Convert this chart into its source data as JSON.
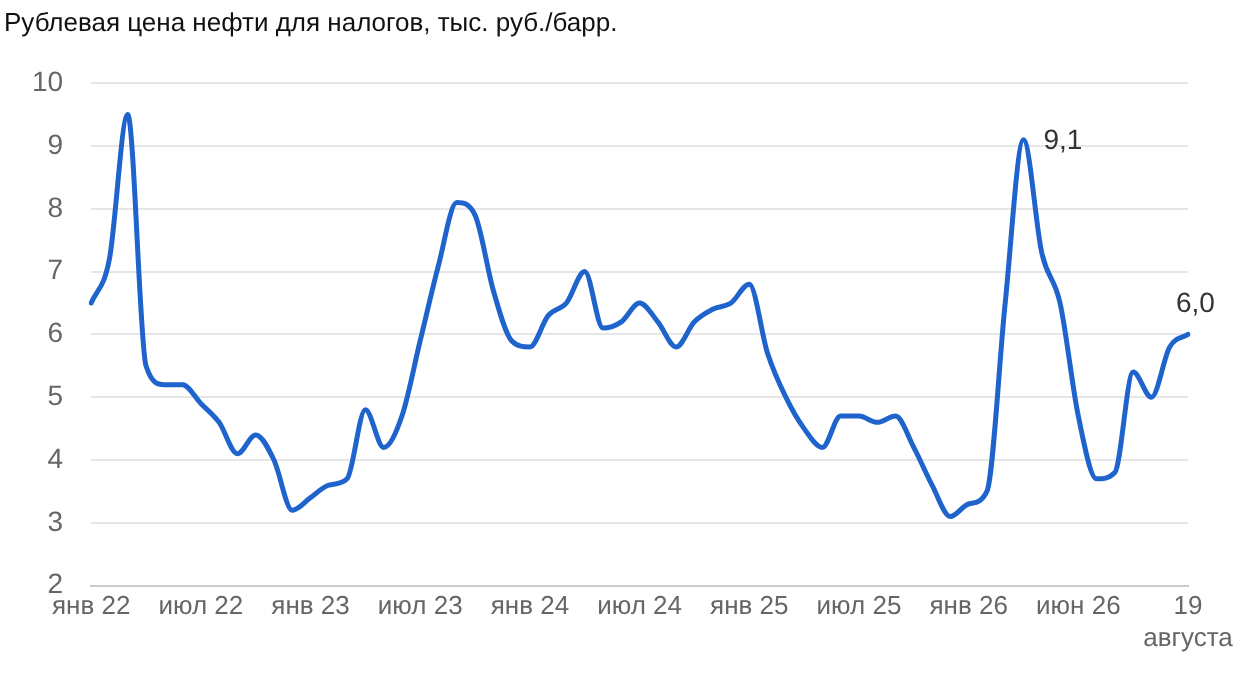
{
  "chart_data": {
    "type": "line",
    "title": "Рублевая цена нефти для налогов, тыс. руб./барр.",
    "categories": [
      "янв 22",
      null,
      null,
      null,
      null,
      null,
      "июл 22",
      null,
      null,
      null,
      null,
      null,
      "янв 23",
      null,
      null,
      null,
      null,
      null,
      "июл 23",
      null,
      null,
      null,
      null,
      null,
      "янв 24",
      null,
      null,
      null,
      null,
      null,
      "июл 24",
      null,
      null,
      null,
      null,
      null,
      "янв 25",
      null,
      null,
      null,
      null,
      null,
      "июл 25",
      null,
      null,
      null,
      null,
      null,
      "янв 26",
      null,
      null,
      null,
      null,
      null,
      "июн 26",
      null,
      null,
      null,
      null,
      null,
      "19 августа"
    ],
    "series": [
      {
        "color": "#1f63cc",
        "values": [
          6.5,
          7.2,
          9.5,
          5.5,
          5.2,
          5.2,
          4.9,
          4.6,
          4.1,
          4.4,
          4.0,
          3.2,
          3.4,
          3.6,
          3.7,
          4.8,
          4.2,
          4.7,
          5.9,
          7.1,
          8.1,
          7.9,
          6.7,
          5.9,
          5.8,
          6.3,
          6.5,
          7.0,
          6.1,
          6.2,
          6.5,
          6.2,
          5.8,
          6.2,
          6.4,
          6.5,
          6.8,
          5.7,
          5.0,
          4.5,
          4.2,
          4.7,
          4.7,
          4.6,
          4.7,
          4.2,
          3.6,
          3.1,
          3.3,
          3.5,
          6.5,
          9.1,
          7.3,
          6.5,
          4.7,
          3.7,
          3.8,
          5.4,
          5.0,
          5.8,
          6.0
        ],
        "value_labels": [
          null,
          null,
          null,
          null,
          null,
          null,
          null,
          null,
          null,
          null,
          null,
          null,
          null,
          null,
          null,
          null,
          null,
          null,
          null,
          null,
          null,
          null,
          null,
          null,
          null,
          null,
          null,
          null,
          null,
          null,
          null,
          null,
          null,
          null,
          null,
          null,
          null,
          null,
          null,
          null,
          null,
          null,
          null,
          null,
          null,
          null,
          null,
          null,
          null,
          null,
          null,
          "9,1",
          null,
          null,
          null,
          null,
          null,
          null,
          null,
          null,
          "6,0"
        ]
      }
    ],
    "ylim": [
      2,
      10
    ],
    "yticks": [
      2,
      3,
      4,
      5,
      6,
      7,
      8,
      9,
      10
    ],
    "grid": "y",
    "legend": false,
    "marker": "none",
    "line_style": "solid"
  }
}
